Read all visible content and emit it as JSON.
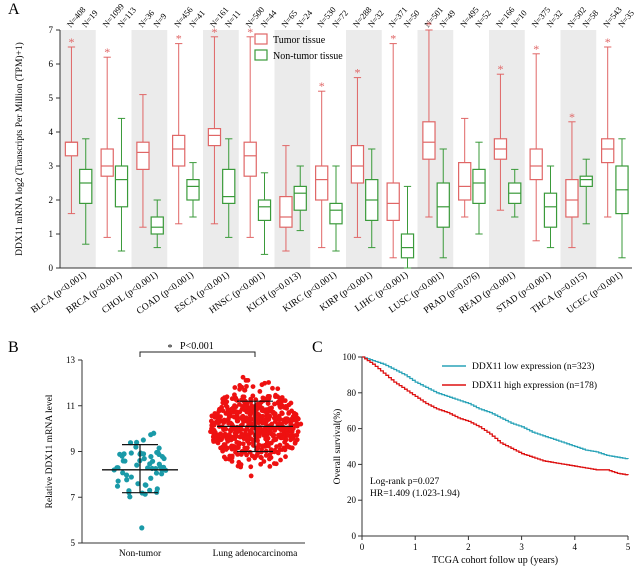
{
  "panels": {
    "A": "A",
    "B": "B",
    "C": "C"
  },
  "chart_data": [
    {
      "panel": "A",
      "type": "box",
      "ylabel": "DDX11 mRNA log2 (Transcripts Per Million (TPM)+1)",
      "ylim": [
        0,
        7
      ],
      "yticks": [
        "0",
        "1",
        "2",
        "3",
        "4",
        "5",
        "6",
        "7"
      ],
      "legend": {
        "position": "top-center",
        "entries": [
          {
            "name": "Tumor tissue",
            "color": "#e06666"
          },
          {
            "name": "Non-tumor tissue",
            "color": "#3a9a3a"
          }
        ]
      },
      "categories": [
        "BLCA (p<0.001)",
        "BRCA (p<0.001)",
        "CHOL (p<0.001)",
        "COAD (p<0.001)",
        "ESCA (p<0.001)",
        "HNSC (p<0.001)",
        "KICH (p=0.013)",
        "KIRC (p<0.001)",
        "KIRP (p<0.001)",
        "LIHC (p<0.001)",
        "LUSC (p<0.001)",
        "PRAD (p=0.076)",
        "READ (p<0.001)",
        "STAD (p<0.001)",
        "THCA (p=0.015)",
        "UCEC (p<0.001)"
      ],
      "n_labels": [
        [
          "N=408",
          "N=19"
        ],
        [
          "N=1099",
          "N=113"
        ],
        [
          "N=36",
          "N=9"
        ],
        [
          "N=456",
          "N=41"
        ],
        [
          "N=161",
          "N=11"
        ],
        [
          "N=500",
          "N=44"
        ],
        [
          "N=65",
          "N=24"
        ],
        [
          "N=530",
          "N=72"
        ],
        [
          "N=288",
          "N=32"
        ],
        [
          "N=371",
          "N=50"
        ],
        [
          "N=501",
          "N=49"
        ],
        [
          "N=495",
          "N=52"
        ],
        [
          "N=166",
          "N=10"
        ],
        [
          "N=375",
          "N=32"
        ],
        [
          "N=502",
          "N=58"
        ],
        [
          "N=543",
          "N=35"
        ]
      ],
      "significance": [
        "*",
        "*",
        "",
        "*",
        "*",
        "*",
        "",
        "*",
        "*",
        "*",
        "*",
        "",
        "*",
        "*",
        "*",
        "*"
      ],
      "series": [
        {
          "name": "Tumor tissue",
          "boxes": [
            [
              1.6,
              3.3,
              3.7,
              3.7,
              6.5
            ],
            [
              0.9,
              2.7,
              3.0,
              3.5,
              6.2
            ],
            [
              1.2,
              2.9,
              3.4,
              3.7,
              5.1
            ],
            [
              1.3,
              3.0,
              3.5,
              3.9,
              6.6
            ],
            [
              1.3,
              3.6,
              3.9,
              4.1,
              6.8
            ],
            [
              0.9,
              2.7,
              3.3,
              3.7,
              6.8
            ],
            [
              0.5,
              1.2,
              1.5,
              2.1,
              3.6
            ],
            [
              0.6,
              2.0,
              2.6,
              3.0,
              5.2
            ],
            [
              0.9,
              2.5,
              3.0,
              3.6,
              5.6
            ],
            [
              0.3,
              1.4,
              1.9,
              2.5,
              6.6
            ],
            [
              1.5,
              3.2,
              3.7,
              4.3,
              7.0
            ],
            [
              1.5,
              2.0,
              2.4,
              3.1,
              4.4
            ],
            [
              1.7,
              3.2,
              3.5,
              3.8,
              5.7
            ],
            [
              0.8,
              2.6,
              3.0,
              3.5,
              6.3
            ],
            [
              0.6,
              1.5,
              2.0,
              2.6,
              4.3
            ],
            [
              1.5,
              3.1,
              3.5,
              3.8,
              6.5
            ]
          ]
        },
        {
          "name": "Non-tumor tissue",
          "boxes": [
            [
              0.7,
              1.9,
              2.5,
              2.9,
              3.8
            ],
            [
              0.5,
              1.8,
              2.6,
              3.0,
              4.4
            ],
            [
              0.6,
              1.0,
              1.2,
              1.5,
              2.0
            ],
            [
              1.5,
              2.0,
              2.4,
              2.6,
              3.1
            ],
            [
              0.9,
              1.9,
              2.1,
              2.9,
              3.8
            ],
            [
              0.4,
              1.4,
              1.8,
              2.0,
              2.8
            ],
            [
              1.1,
              1.7,
              2.2,
              2.4,
              3.0
            ],
            [
              0.5,
              1.3,
              1.7,
              1.9,
              3.0
            ],
            [
              0.6,
              1.4,
              2.0,
              2.6,
              3.5
            ],
            [
              0.0,
              0.3,
              0.6,
              1.0,
              2.4
            ],
            [
              0.3,
              1.2,
              1.8,
              2.5,
              3.5
            ],
            [
              1.0,
              1.9,
              2.5,
              2.9,
              3.7
            ],
            [
              1.5,
              1.9,
              2.2,
              2.5,
              2.9
            ],
            [
              0.6,
              1.2,
              1.8,
              2.2,
              3.0
            ],
            [
              1.3,
              2.4,
              2.6,
              2.7,
              3.2
            ],
            [
              0.3,
              1.6,
              2.3,
              3.0,
              3.8
            ]
          ]
        }
      ]
    },
    {
      "panel": "B",
      "type": "scatter",
      "ylabel": "Relative DDX11 mRNA level",
      "ylim": [
        5,
        13
      ],
      "yticks": [
        "5",
        "7",
        "9",
        "11",
        "13"
      ],
      "categories": [
        "Non-tumor",
        "Lung adenocarcinoma"
      ],
      "annotation": "P<0.001",
      "annotation_star": "*",
      "groups": [
        {
          "name": "Non-tumor",
          "color": "#1a9aa8",
          "n": 59,
          "mean": 8.2,
          "sd_low": 7.2,
          "sd_high": 9.3,
          "min": 5.1,
          "max": 10.6
        },
        {
          "name": "Lung adenocarcinoma",
          "color": "#ee1111",
          "n": 535,
          "mean": 10.1,
          "sd_low": 9.0,
          "sd_high": 11.2,
          "min": 6.8,
          "max": 12.8
        }
      ]
    },
    {
      "panel": "C",
      "type": "line",
      "xlabel": "TCGA cohort follow up (years)",
      "ylabel": "Overall survival(%)",
      "xlim": [
        0,
        5
      ],
      "ylim": [
        0,
        100
      ],
      "xticks": [
        "0",
        "1",
        "2",
        "3",
        "4",
        "5"
      ],
      "yticks": [
        "0",
        "20",
        "40",
        "60",
        "80",
        "100"
      ],
      "legend": {
        "position": "top-right"
      },
      "annotations": [
        "Log-rank p=0.027",
        "HR=1.409 (1.023-1.94)"
      ],
      "series": [
        {
          "name": "DDX11 low expression (n=323)",
          "color": "#2aa3b8",
          "x": [
            0,
            0.2,
            0.4,
            0.6,
            0.8,
            1.0,
            1.2,
            1.4,
            1.6,
            1.8,
            2.0,
            2.2,
            2.4,
            2.6,
            2.8,
            3.0,
            3.2,
            3.4,
            3.6,
            3.8,
            4.0,
            4.2,
            4.4,
            4.6,
            4.8,
            5.0
          ],
          "y": [
            100,
            98,
            96,
            93,
            90,
            86,
            83,
            80,
            78,
            76,
            74,
            71,
            69,
            66,
            63,
            61,
            58,
            56,
            54,
            52,
            50,
            48,
            47,
            45,
            44,
            43
          ]
        },
        {
          "name": "DDX11 high expression (n=178)",
          "color": "#dd1111",
          "x": [
            0,
            0.2,
            0.4,
            0.6,
            0.8,
            1.0,
            1.2,
            1.4,
            1.6,
            1.8,
            2.0,
            2.2,
            2.4,
            2.6,
            2.8,
            3.0,
            3.2,
            3.4,
            3.6,
            3.8,
            4.0,
            4.2,
            4.4,
            4.6,
            4.8,
            5.0
          ],
          "y": [
            100,
            96,
            91,
            86,
            82,
            78,
            74,
            71,
            69,
            66,
            64,
            61,
            57,
            52,
            49,
            46,
            44,
            42,
            41,
            40,
            39,
            38,
            37,
            37,
            35,
            34
          ]
        }
      ]
    }
  ]
}
